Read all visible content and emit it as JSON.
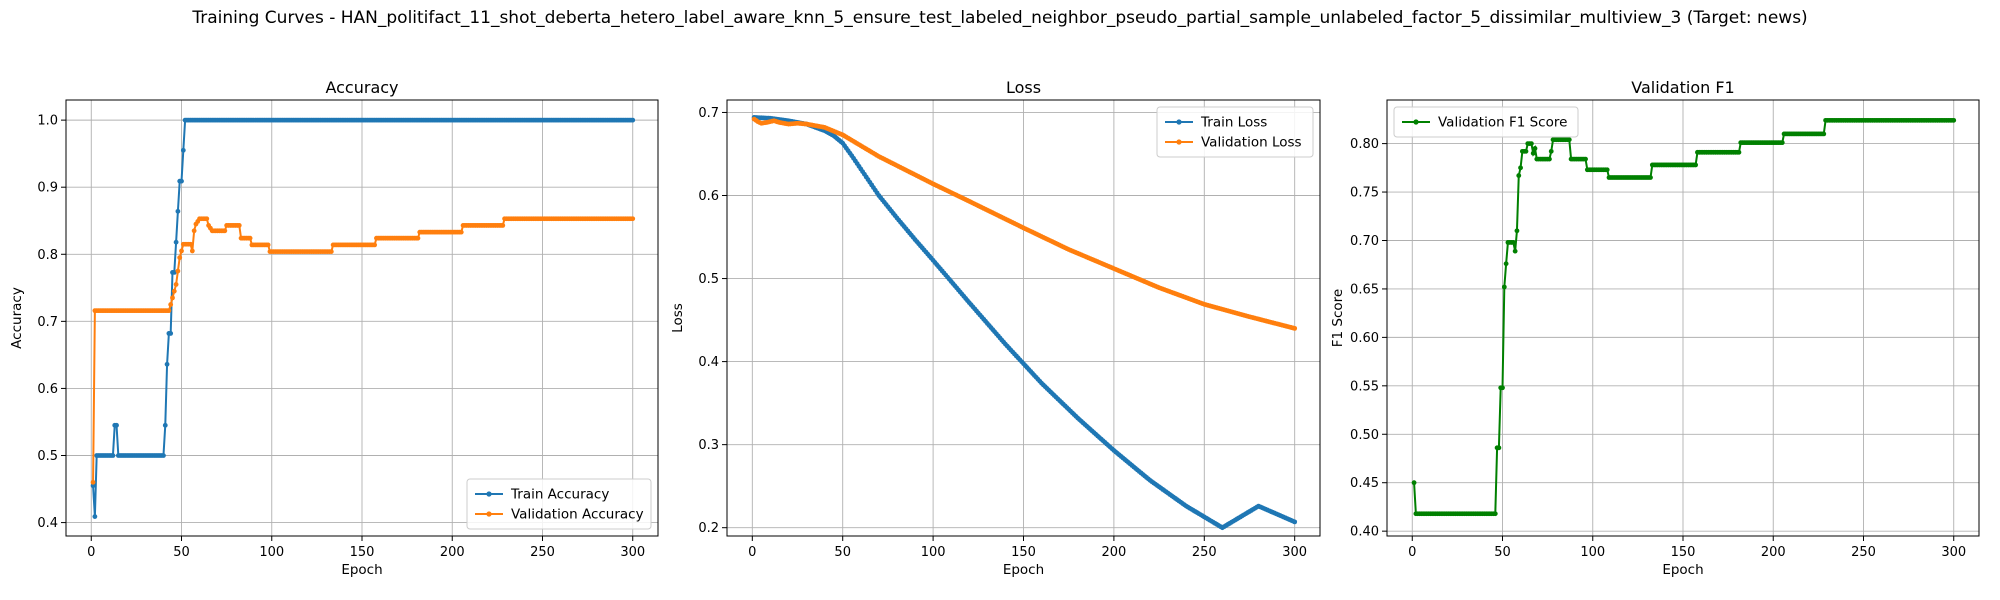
{
  "figure": {
    "suptitle": "Training Curves - HAN_politifact_11_shot_deberta_hetero_label_aware_knn_5_ensure_test_labeled_neighbor_pseudo_partial_sample_unlabeled_factor_5_dissimilar_multiview_3 (Target: news)"
  },
  "chart_data": [
    {
      "type": "line",
      "title": "Accuracy",
      "xlabel": "Epoch",
      "ylabel": "Accuracy",
      "xlim": [
        -14,
        314
      ],
      "ylim": [
        0.38,
        1.03
      ],
      "xticks": [
        0,
        50,
        100,
        150,
        200,
        250,
        300
      ],
      "yticks": [
        0.4,
        0.5,
        0.6,
        0.7,
        0.8,
        0.9,
        1.0
      ],
      "ytick_labels": [
        "0.4",
        "0.5",
        "0.6",
        "0.7",
        "0.8",
        "0.9",
        "1.0"
      ],
      "grid": true,
      "legend": "lower right",
      "series": [
        {
          "name": "Train Accuracy",
          "color": "#1f77b4",
          "points": [
            [
              1,
              0.455
            ],
            [
              2,
              0.409
            ],
            [
              3,
              0.5
            ],
            [
              12,
              0.5
            ],
            [
              13,
              0.545
            ],
            [
              14,
              0.545
            ],
            [
              15,
              0.5
            ],
            [
              40,
              0.5
            ],
            [
              41,
              0.545
            ],
            [
              42,
              0.636
            ],
            [
              43,
              0.682
            ],
            [
              44,
              0.682
            ],
            [
              45,
              0.773
            ],
            [
              46,
              0.773
            ],
            [
              47,
              0.818
            ],
            [
              48,
              0.864
            ],
            [
              49,
              0.909
            ],
            [
              50,
              0.909
            ],
            [
              51,
              0.955
            ],
            [
              52,
              1.0
            ],
            [
              300,
              1.0
            ]
          ]
        },
        {
          "name": "Validation Accuracy",
          "color": "#ff7f0e",
          "points": [
            [
              1,
              0.46
            ],
            [
              2,
              0.716
            ],
            [
              43,
              0.716
            ],
            [
              44,
              0.725
            ],
            [
              45,
              0.735
            ],
            [
              47,
              0.755
            ],
            [
              48,
              0.775
            ],
            [
              49,
              0.795
            ],
            [
              50,
              0.805
            ],
            [
              51,
              0.815
            ],
            [
              55,
              0.815
            ],
            [
              56,
              0.805
            ],
            [
              57,
              0.835
            ],
            [
              58,
              0.845
            ],
            [
              60,
              0.853
            ],
            [
              64,
              0.853
            ],
            [
              65,
              0.843
            ],
            [
              67,
              0.835
            ],
            [
              74,
              0.835
            ],
            [
              75,
              0.843
            ],
            [
              82,
              0.843
            ],
            [
              83,
              0.824
            ],
            [
              88,
              0.824
            ],
            [
              89,
              0.814
            ],
            [
              98,
              0.814
            ],
            [
              99,
              0.804
            ],
            [
              133,
              0.804
            ],
            [
              134,
              0.814
            ],
            [
              157,
              0.814
            ],
            [
              158,
              0.824
            ],
            [
              181,
              0.824
            ],
            [
              182,
              0.833
            ],
            [
              205,
              0.833
            ],
            [
              206,
              0.843
            ],
            [
              228,
              0.843
            ],
            [
              229,
              0.853
            ],
            [
              300,
              0.853
            ]
          ]
        }
      ]
    },
    {
      "type": "line",
      "title": "Loss",
      "xlabel": "Epoch",
      "ylabel": "Loss",
      "xlim": [
        -14,
        314
      ],
      "ylim": [
        0.19,
        0.715
      ],
      "xticks": [
        0,
        50,
        100,
        150,
        200,
        250,
        300
      ],
      "yticks": [
        0.2,
        0.3,
        0.4,
        0.5,
        0.6,
        0.7
      ],
      "ytick_labels": [
        "0.2",
        "0.3",
        "0.4",
        "0.5",
        "0.6",
        "0.7"
      ],
      "grid": true,
      "legend": "upper right",
      "series": [
        {
          "name": "Train Loss",
          "color": "#1f77b4",
          "points": [
            [
              1,
              0.694
            ],
            [
              10,
              0.693
            ],
            [
              20,
              0.69
            ],
            [
              30,
              0.686
            ],
            [
              40,
              0.678
            ],
            [
              45,
              0.672
            ],
            [
              50,
              0.663
            ],
            [
              55,
              0.648
            ],
            [
              60,
              0.632
            ],
            [
              70,
              0.6
            ],
            [
              80,
              0.573
            ],
            [
              90,
              0.547
            ],
            [
              100,
              0.522
            ],
            [
              120,
              0.471
            ],
            [
              140,
              0.421
            ],
            [
              160,
              0.374
            ],
            [
              180,
              0.332
            ],
            [
              200,
              0.293
            ],
            [
              220,
              0.257
            ],
            [
              240,
              0.226
            ],
            [
              260,
              0.2
            ],
            [
              280,
              0.226
            ],
            [
              300,
              0.207
            ]
          ]
        },
        {
          "name": "Validation Loss",
          "color": "#ff7f0e",
          "points": [
            [
              1,
              0.692
            ],
            [
              3,
              0.689
            ],
            [
              5,
              0.687
            ],
            [
              8,
              0.688
            ],
            [
              12,
              0.69
            ],
            [
              15,
              0.688
            ],
            [
              20,
              0.686
            ],
            [
              25,
              0.687
            ],
            [
              30,
              0.686
            ],
            [
              40,
              0.682
            ],
            [
              50,
              0.673
            ],
            [
              60,
              0.66
            ],
            [
              70,
              0.647
            ],
            [
              80,
              0.636
            ],
            [
              100,
              0.614
            ],
            [
              120,
              0.593
            ],
            [
              150,
              0.561
            ],
            [
              175,
              0.535
            ],
            [
              200,
              0.512
            ],
            [
              225,
              0.489
            ],
            [
              250,
              0.469
            ],
            [
              275,
              0.454
            ],
            [
              300,
              0.44
            ]
          ]
        }
      ]
    },
    {
      "type": "line",
      "title": "Validation F1",
      "xlabel": "Epoch",
      "ylabel": "F1 Score",
      "xlim": [
        -14,
        314
      ],
      "ylim": [
        0.395,
        0.845
      ],
      "xticks": [
        0,
        50,
        100,
        150,
        200,
        250,
        300
      ],
      "yticks": [
        0.4,
        0.45,
        0.5,
        0.55,
        0.6,
        0.65,
        0.7,
        0.75,
        0.8
      ],
      "ytick_labels": [
        "0.40",
        "0.45",
        "0.50",
        "0.55",
        "0.60",
        "0.65",
        "0.70",
        "0.75",
        "0.80"
      ],
      "grid": true,
      "legend": "upper left",
      "series": [
        {
          "name": "Validation F1 Score",
          "color": "#008000",
          "points": [
            [
              1,
              0.45
            ],
            [
              2,
              0.418
            ],
            [
              46,
              0.418
            ],
            [
              47,
              0.486
            ],
            [
              48,
              0.486
            ],
            [
              49,
              0.548
            ],
            [
              50,
              0.548
            ],
            [
              51,
              0.652
            ],
            [
              52,
              0.676
            ],
            [
              53,
              0.698
            ],
            [
              56,
              0.698
            ],
            [
              57,
              0.689
            ],
            [
              58,
              0.71
            ],
            [
              59,
              0.767
            ],
            [
              60,
              0.775
            ],
            [
              61,
              0.792
            ],
            [
              63,
              0.792
            ],
            [
              64,
              0.8
            ],
            [
              66,
              0.8
            ],
            [
              67,
              0.79
            ],
            [
              68,
              0.795
            ],
            [
              69,
              0.784
            ],
            [
              76,
              0.784
            ],
            [
              77,
              0.792
            ],
            [
              78,
              0.804
            ],
            [
              87,
              0.804
            ],
            [
              88,
              0.784
            ],
            [
              96,
              0.784
            ],
            [
              97,
              0.773
            ],
            [
              108,
              0.773
            ],
            [
              109,
              0.765
            ],
            [
              132,
              0.765
            ],
            [
              133,
              0.778
            ],
            [
              157,
              0.778
            ],
            [
              158,
              0.791
            ],
            [
              181,
              0.791
            ],
            [
              182,
              0.801
            ],
            [
              205,
              0.801
            ],
            [
              206,
              0.81
            ],
            [
              228,
              0.81
            ],
            [
              229,
              0.824
            ],
            [
              300,
              0.824
            ]
          ]
        }
      ]
    }
  ]
}
